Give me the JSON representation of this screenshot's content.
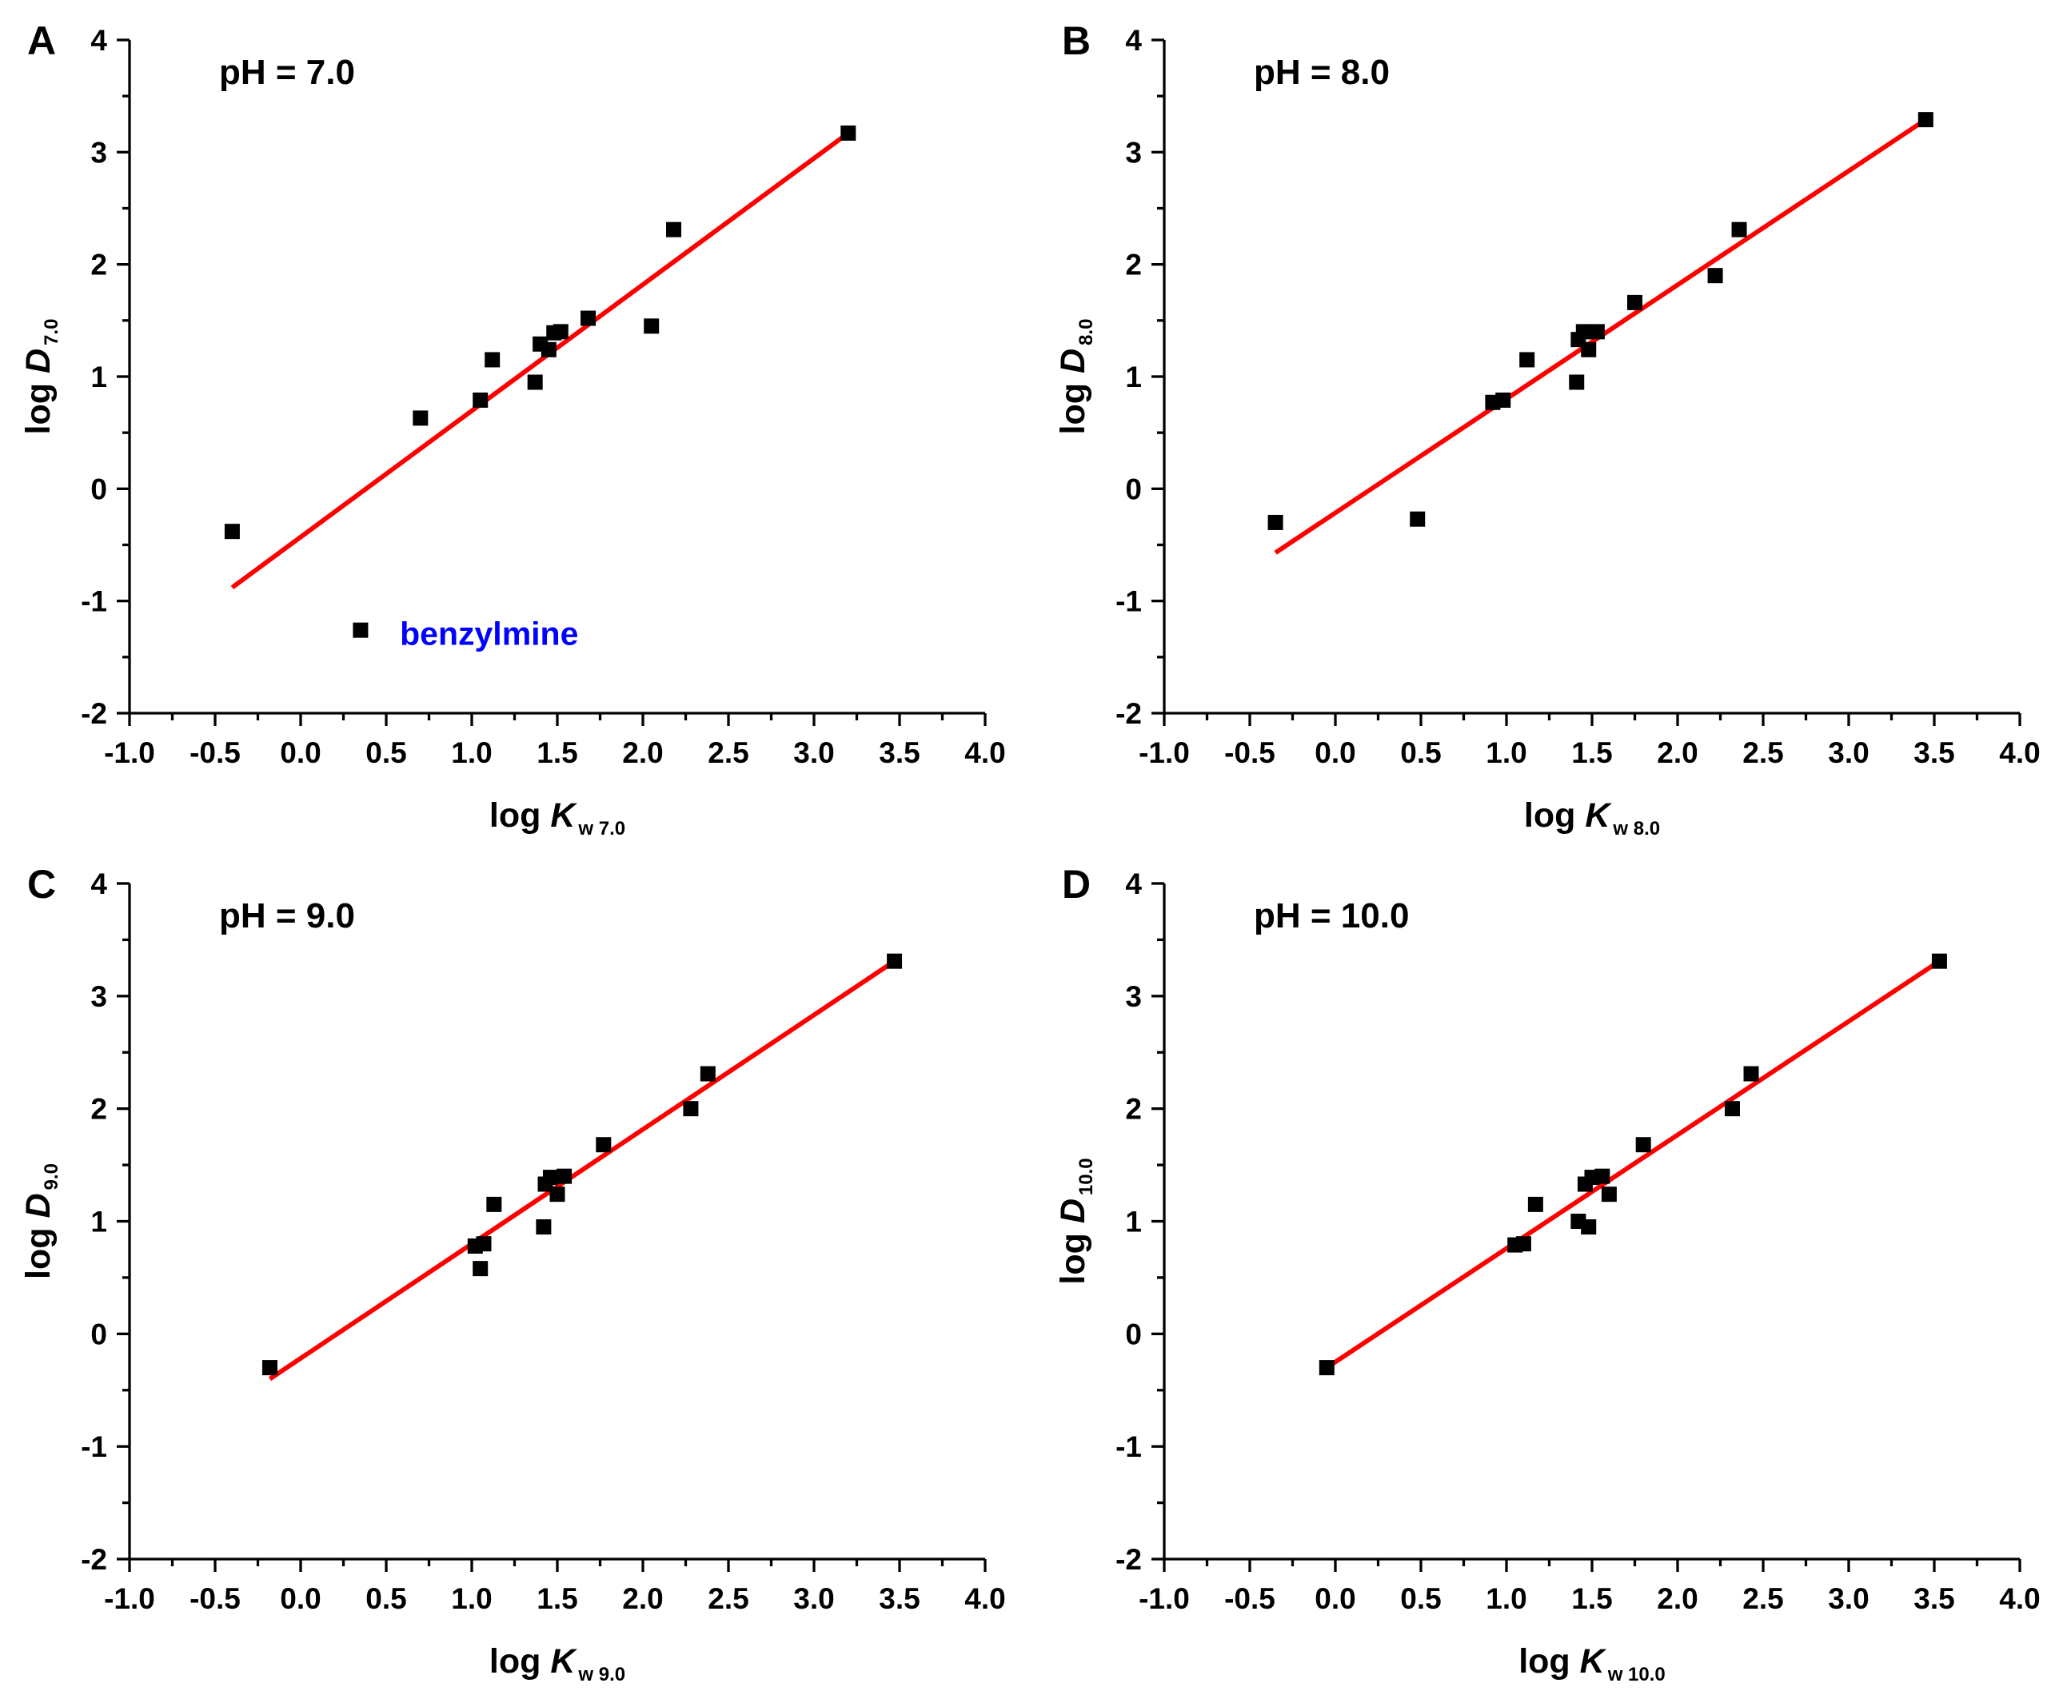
{
  "colors": {
    "fit_line": "#ff0000",
    "points": "#000000",
    "annotation": "#0000ff",
    "axes": "#000000"
  },
  "chart_data": [
    {
      "type": "scatter",
      "panel_letter": "A",
      "title": "pH = 7.0",
      "xlabel": {
        "main": "log ",
        "italic": "K",
        "sub": "w 7.0"
      },
      "ylabel": {
        "main": "log ",
        "italic": "D",
        "sub": "7.0"
      },
      "xlim": [
        -1.0,
        4.0
      ],
      "ylim": [
        -2,
        4
      ],
      "x_ticks": [
        "-1.0",
        "-0.5",
        "0.0",
        "0.5",
        "1.0",
        "1.5",
        "2.0",
        "2.5",
        "3.0",
        "3.5",
        "4.0"
      ],
      "y_ticks": [
        "-2",
        "-1",
        "0",
        "1",
        "2",
        "3",
        "4"
      ],
      "grid": false,
      "points": [
        [
          -0.4,
          -0.38
        ],
        [
          0.35,
          -1.26
        ],
        [
          0.7,
          0.63
        ],
        [
          1.05,
          0.79
        ],
        [
          1.12,
          1.15
        ],
        [
          1.37,
          0.95
        ],
        [
          1.4,
          1.29
        ],
        [
          1.45,
          1.24
        ],
        [
          1.48,
          1.39
        ],
        [
          1.52,
          1.4
        ],
        [
          1.68,
          1.52
        ],
        [
          2.05,
          1.45
        ],
        [
          2.18,
          2.31
        ],
        [
          3.2,
          3.17
        ]
      ],
      "fit_line": [
        [
          -0.4,
          -0.88
        ],
        [
          3.2,
          3.17
        ]
      ],
      "annotation": {
        "text": "benzylmine",
        "x": 0.58,
        "y": -1.29
      }
    },
    {
      "type": "scatter",
      "panel_letter": "B",
      "title": "pH = 8.0",
      "xlabel": {
        "main": "log ",
        "italic": "K",
        "sub": "w 8.0"
      },
      "ylabel": {
        "main": "log ",
        "italic": "D",
        "sub": "8.0"
      },
      "xlim": [
        -1.0,
        4.0
      ],
      "ylim": [
        -2,
        4
      ],
      "x_ticks": [
        "-1.0",
        "-0.5",
        "0.0",
        "0.5",
        "1.0",
        "1.5",
        "2.0",
        "2.5",
        "3.0",
        "3.5",
        "4.0"
      ],
      "y_ticks": [
        "-2",
        "-1",
        "0",
        "1",
        "2",
        "3",
        "4"
      ],
      "grid": false,
      "points": [
        [
          -0.35,
          -0.3
        ],
        [
          0.48,
          -0.27
        ],
        [
          0.92,
          0.77
        ],
        [
          0.98,
          0.79
        ],
        [
          1.12,
          1.15
        ],
        [
          1.41,
          0.95
        ],
        [
          1.42,
          1.33
        ],
        [
          1.45,
          1.4
        ],
        [
          1.48,
          1.24
        ],
        [
          1.53,
          1.4
        ],
        [
          1.75,
          1.66
        ],
        [
          2.22,
          1.9
        ],
        [
          2.36,
          2.31
        ],
        [
          3.45,
          3.29
        ]
      ],
      "fit_line": [
        [
          -0.35,
          -0.57
        ],
        [
          3.45,
          3.29
        ]
      ]
    },
    {
      "type": "scatter",
      "panel_letter": "C",
      "title": "pH = 9.0",
      "xlabel": {
        "main": "log ",
        "italic": "K",
        "sub": "w 9.0"
      },
      "ylabel": {
        "main": "log ",
        "italic": "D",
        "sub": "9.0"
      },
      "xlim": [
        -1.0,
        4.0
      ],
      "ylim": [
        -2,
        4
      ],
      "x_ticks": [
        "-1.0",
        "-0.5",
        "0.0",
        "0.5",
        "1.0",
        "1.5",
        "2.0",
        "2.5",
        "3.0",
        "3.5",
        "4.0"
      ],
      "y_ticks": [
        "-2",
        "-1",
        "0",
        "1",
        "2",
        "3",
        "4"
      ],
      "grid": false,
      "points": [
        [
          -0.18,
          -0.3
        ],
        [
          1.02,
          0.78
        ],
        [
          1.05,
          0.58
        ],
        [
          1.07,
          0.8
        ],
        [
          1.13,
          1.15
        ],
        [
          1.42,
          0.95
        ],
        [
          1.43,
          1.33
        ],
        [
          1.46,
          1.39
        ],
        [
          1.5,
          1.24
        ],
        [
          1.54,
          1.4
        ],
        [
          1.77,
          1.68
        ],
        [
          2.28,
          2.0
        ],
        [
          2.38,
          2.31
        ],
        [
          3.47,
          3.31
        ]
      ],
      "fit_line": [
        [
          -0.18,
          -0.4
        ],
        [
          3.47,
          3.31
        ]
      ]
    },
    {
      "type": "scatter",
      "panel_letter": "D",
      "title": "pH = 10.0",
      "xlabel": {
        "main": "log ",
        "italic": "K",
        "sub": "w 10.0"
      },
      "ylabel": {
        "main": "log ",
        "italic": "D",
        "sub": "10.0"
      },
      "xlim": [
        -1.0,
        4.0
      ],
      "ylim": [
        -2,
        4
      ],
      "x_ticks": [
        "-1.0",
        "-0.5",
        "0.0",
        "0.5",
        "1.0",
        "1.5",
        "2.0",
        "2.5",
        "3.0",
        "3.5",
        "4.0"
      ],
      "y_ticks": [
        "-2",
        "-1",
        "0",
        "1",
        "2",
        "3",
        "4"
      ],
      "grid": false,
      "points": [
        [
          -0.05,
          -0.3
        ],
        [
          1.05,
          0.79
        ],
        [
          1.1,
          0.8
        ],
        [
          1.17,
          1.15
        ],
        [
          1.42,
          1.0
        ],
        [
          1.46,
          1.33
        ],
        [
          1.48,
          0.95
        ],
        [
          1.5,
          1.39
        ],
        [
          1.56,
          1.4
        ],
        [
          1.6,
          1.24
        ],
        [
          1.8,
          1.68
        ],
        [
          2.32,
          2.0
        ],
        [
          2.43,
          2.31
        ],
        [
          3.53,
          3.31
        ]
      ],
      "fit_line": [
        [
          -0.05,
          -0.3
        ],
        [
          3.53,
          3.31
        ]
      ]
    }
  ]
}
